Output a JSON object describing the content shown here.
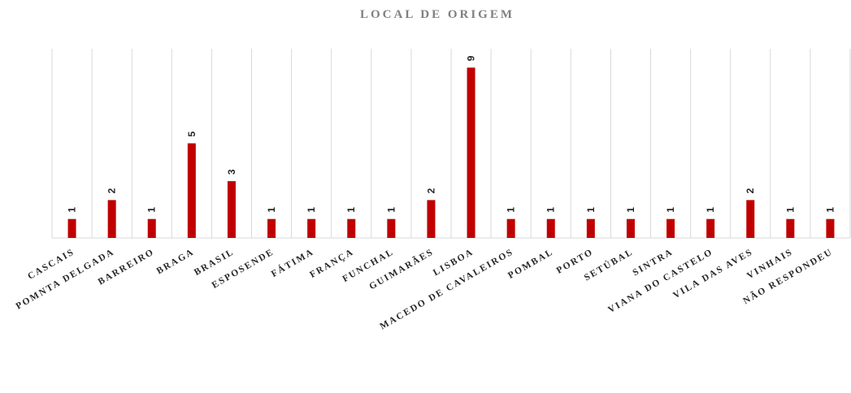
{
  "chart_data": {
    "type": "bar",
    "title": "LOCAL DE ORIGEM",
    "categories": [
      "CASCAIS",
      "POMNTA DELGADA",
      "BARREIRO",
      "BRAGA",
      "BRASIL",
      "ESPOSENDE",
      "FÁTIMA",
      "FRANÇA",
      "FUNCHAL",
      "GUIMARÃES",
      "LISBOA",
      "MACEDO DE CAVALEIROS",
      "POMBAL",
      "PORTO",
      "SETÚBAL",
      "SINTRA",
      "VIANA DO CASTELO",
      "VILA DAS AVES",
      "VINHAIS",
      "NÃO RESPONDEU"
    ],
    "values": [
      1,
      2,
      1,
      5,
      3,
      1,
      1,
      1,
      1,
      2,
      9,
      1,
      1,
      1,
      1,
      1,
      1,
      2,
      1,
      1
    ],
    "color": "#c00000",
    "ylim": [
      0,
      10
    ],
    "grid": true
  }
}
